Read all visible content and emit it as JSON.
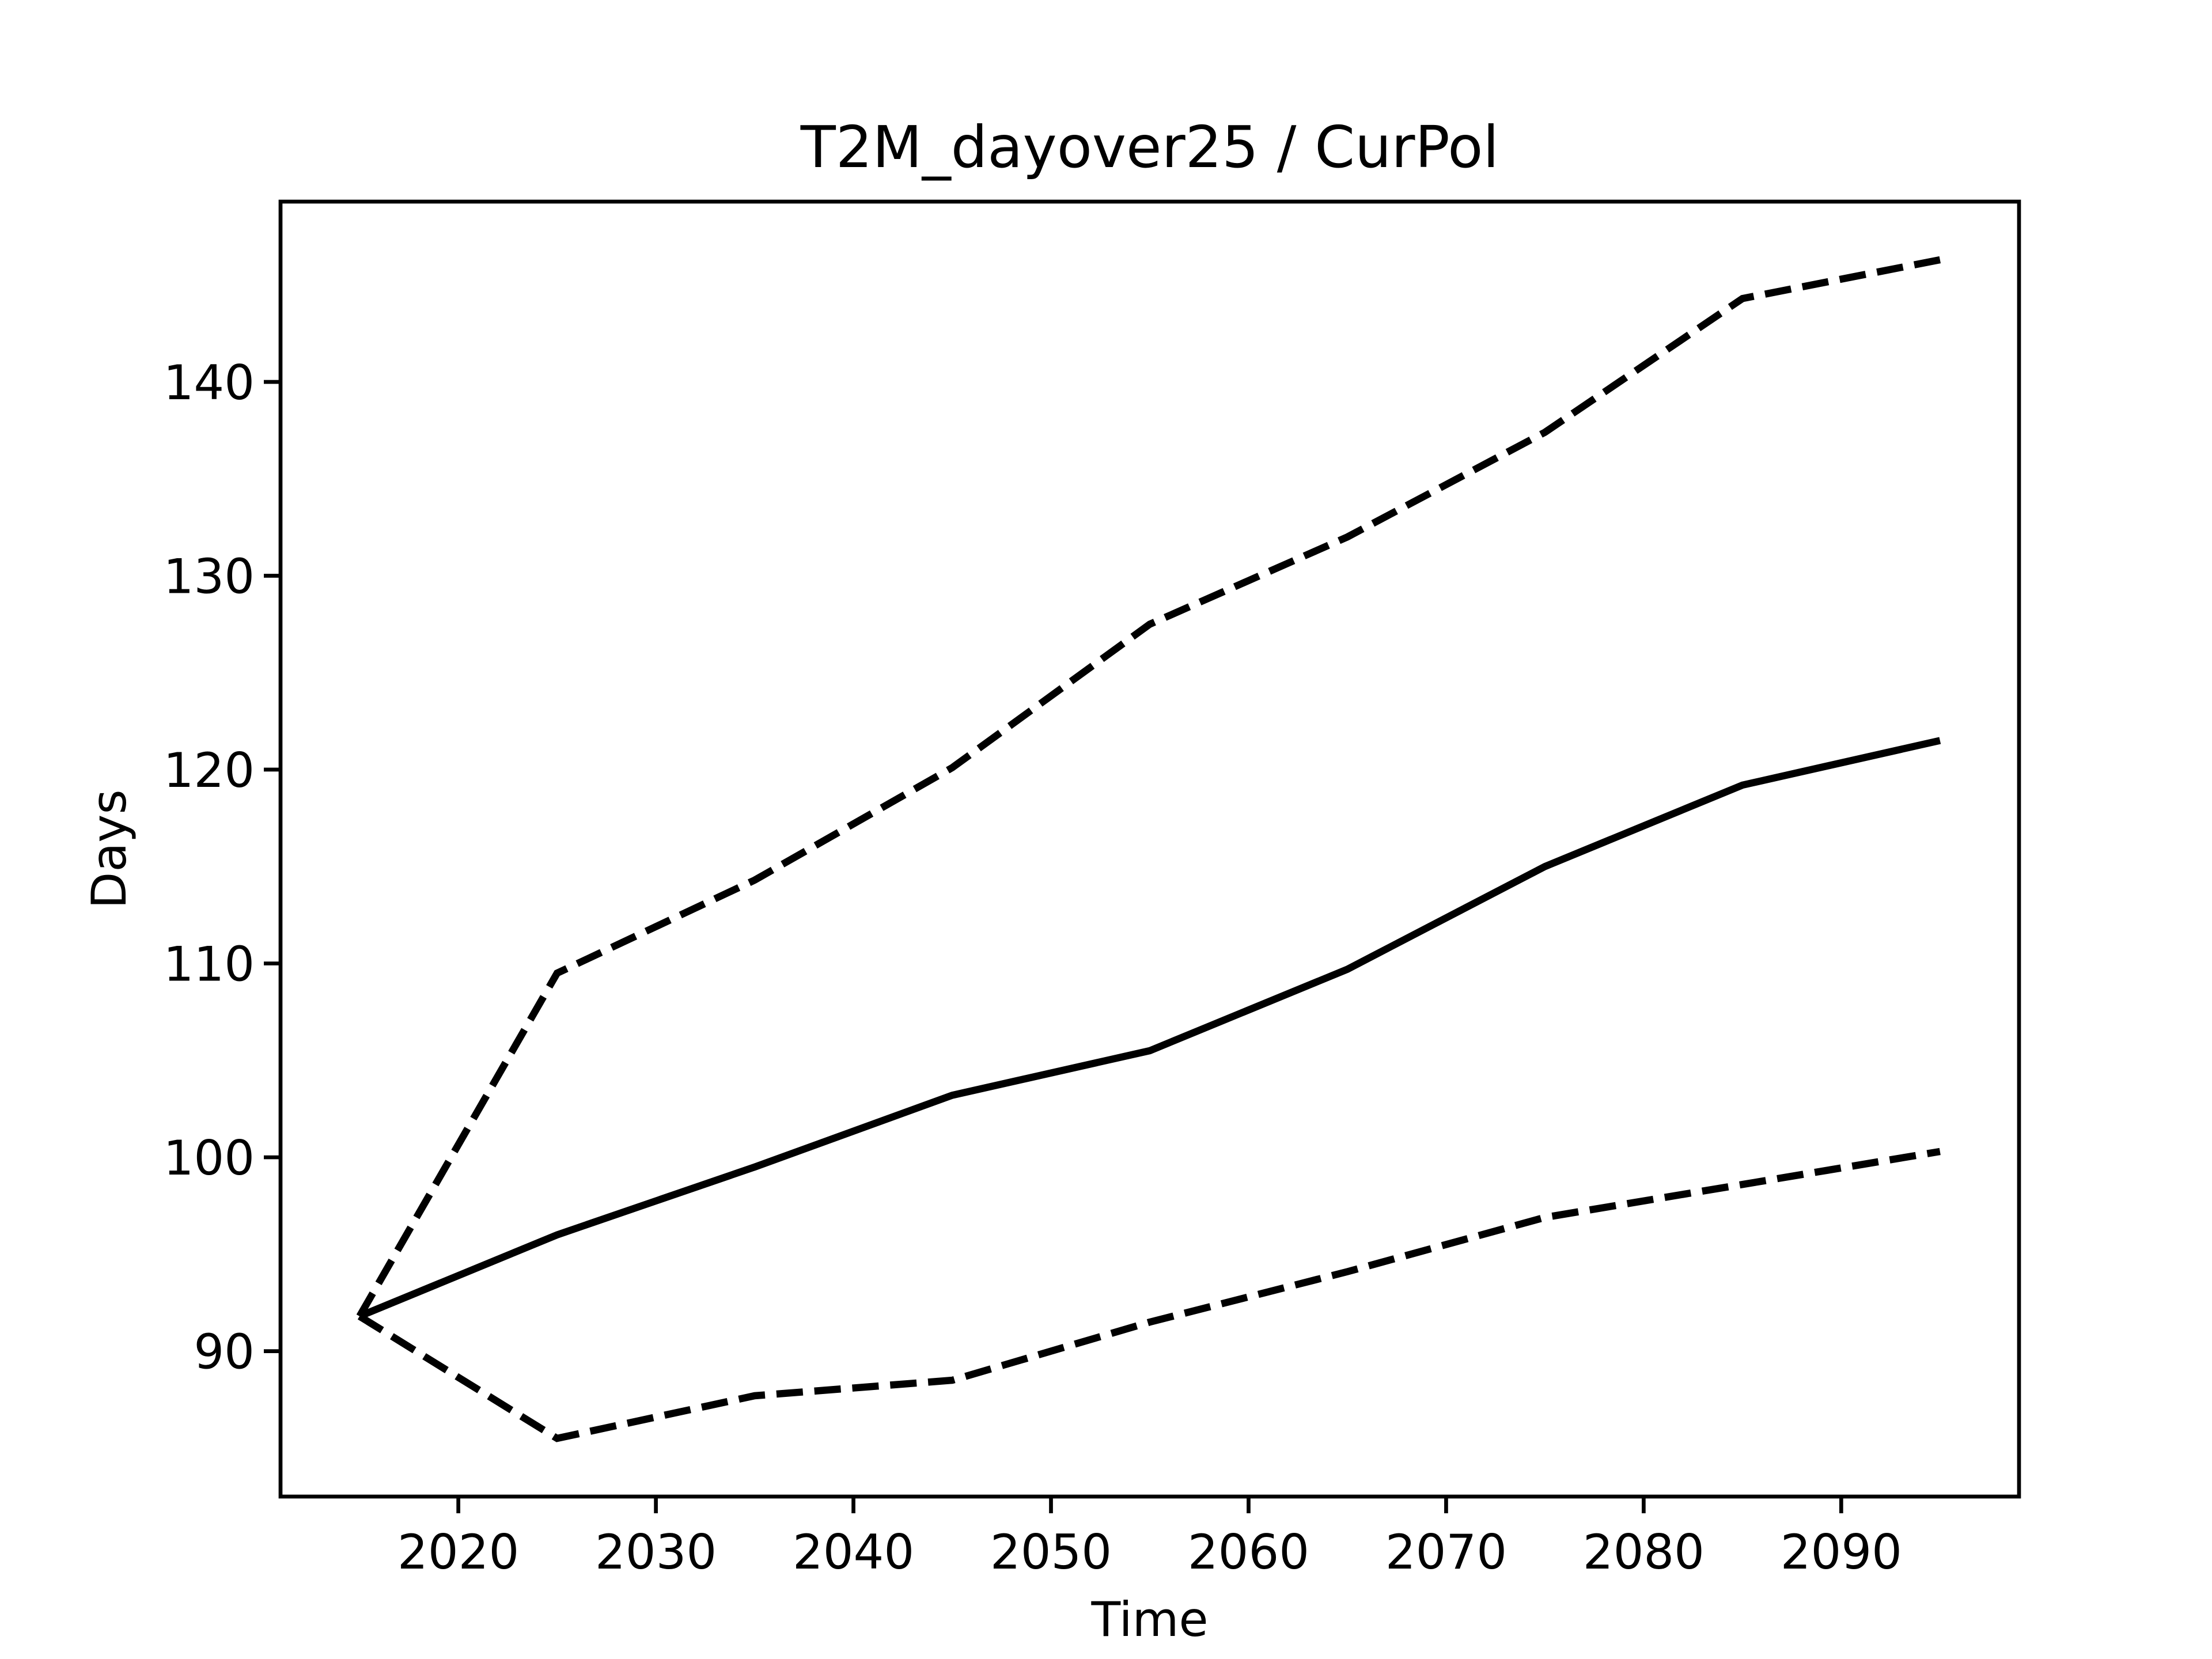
{
  "chart_data": {
    "type": "line",
    "title": "T2M_dayover25 / CurPol",
    "x_label": "Time",
    "y_label": "Days",
    "x": [
      2015,
      2025,
      2035,
      2045,
      2055,
      2065,
      2075,
      2085,
      2095
    ],
    "series": [
      {
        "color": "#000000",
        "linestyle": "solid",
        "values": [
          91.8,
          96.0,
          99.5,
          103.2,
          105.5,
          109.7,
          115.0,
          119.2,
          121.5
        ]
      },
      {
        "color": "#000000",
        "linestyle": "dashed",
        "values": [
          91.8,
          109.5,
          114.3,
          120.1,
          127.5,
          132.0,
          137.4,
          144.3,
          146.3
        ]
      },
      {
        "color": "#000000",
        "linestyle": "dashed",
        "values": [
          91.8,
          85.5,
          87.7,
          88.5,
          91.5,
          94.1,
          96.9,
          98.6,
          100.3
        ]
      }
    ],
    "xlim": [
      2011,
      2099
    ],
    "xticks": [
      2020,
      2030,
      2040,
      2050,
      2060,
      2070,
      2080,
      2090
    ],
    "ylim": [
      82.5,
      149.3
    ],
    "yticks": [
      90,
      100,
      110,
      120,
      130,
      140
    ],
    "grid": false
  }
}
